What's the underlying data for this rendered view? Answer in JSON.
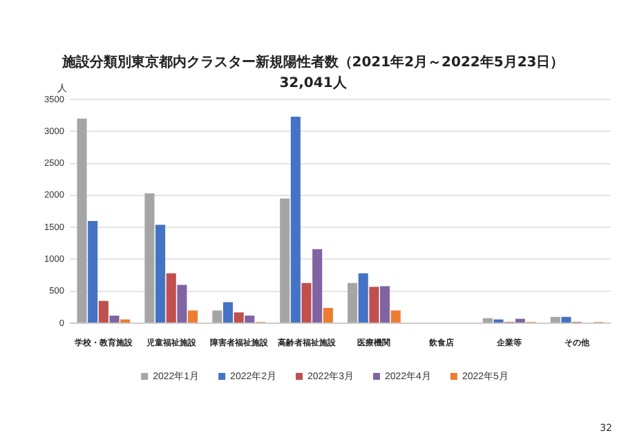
{
  "chart_data": {
    "type": "bar",
    "title": "施設分類別東京都内クラスター新規陽性者数（2021年2月～2022年5月23日）",
    "subtitle": "32,041人",
    "ylabel": "人",
    "categories": [
      "学校・教育施設",
      "児童福祉施設",
      "障害者福祉施設",
      "高齢者福祉施設",
      "医療機関",
      "飲食店",
      "企業等",
      "その他"
    ],
    "series": [
      {
        "name": "2022年1月",
        "color": "#a5a5a5",
        "values": [
          3200,
          2030,
          200,
          1950,
          630,
          0,
          80,
          100
        ]
      },
      {
        "name": "2022年2月",
        "color": "#4472c4",
        "values": [
          1600,
          1540,
          330,
          3230,
          780,
          0,
          60,
          100
        ]
      },
      {
        "name": "2022年3月",
        "color": "#c0504d",
        "values": [
          350,
          780,
          170,
          630,
          570,
          0,
          20,
          20
        ]
      },
      {
        "name": "2022年4月",
        "color": "#8064a2",
        "values": [
          120,
          600,
          120,
          1160,
          580,
          0,
          70,
          0
        ]
      },
      {
        "name": "2022年5月",
        "color": "#ed7d31",
        "values": [
          60,
          200,
          20,
          240,
          200,
          0,
          20,
          20
        ]
      }
    ],
    "ylim": [
      0,
      3500
    ],
    "yticks": [
      0,
      500,
      1000,
      1500,
      2000,
      2500,
      3000,
      3500
    ],
    "grid": "y",
    "legend": "bottom",
    "annotations": [
      "32"
    ]
  }
}
